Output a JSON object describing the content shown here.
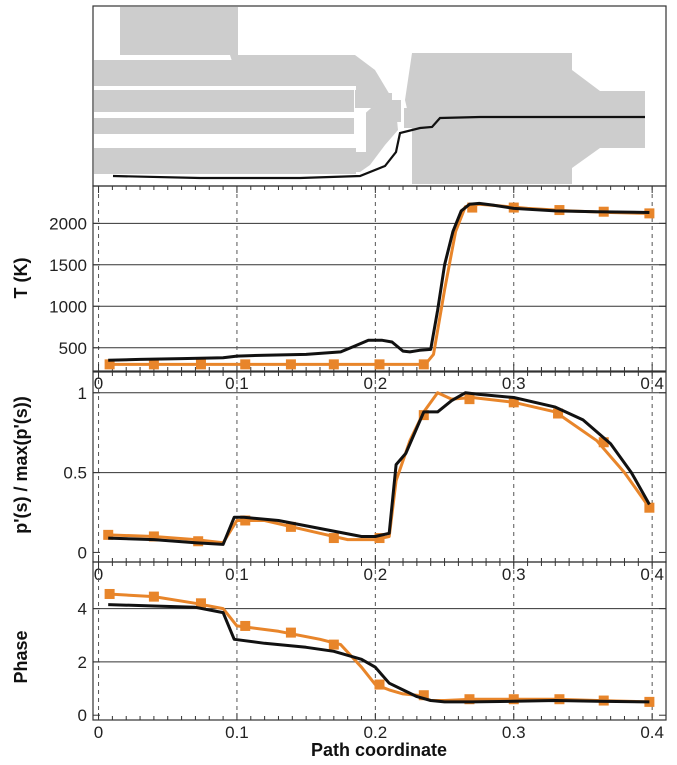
{
  "chart_data": [
    {
      "type": "diagram",
      "panel": "geometry",
      "description_series": "path line through combustor geometry"
    },
    {
      "type": "line",
      "panel": "temperature",
      "ylabel": "T (K)",
      "xlim": [
        -0.004,
        0.41
      ],
      "ylim": [
        220,
        2450
      ],
      "y_ticks": [
        500,
        1000,
        1500,
        2000
      ],
      "y_gridlines": [
        500,
        1000,
        1500,
        2000
      ],
      "x_ticks": [
        0,
        0.1,
        0.2,
        0.3,
        0.4
      ],
      "x_tick_labels": [
        "0",
        "0.1",
        "0.2",
        "0.3",
        "0.4"
      ],
      "series": [
        {
          "color": "#e8852a",
          "marker": "square",
          "x": [
            0.007,
            0.025,
            0.045,
            0.065,
            0.09,
            0.12,
            0.15,
            0.18,
            0.2,
            0.22,
            0.236,
            0.242,
            0.25,
            0.258,
            0.265,
            0.275,
            0.29,
            0.31,
            0.34,
            0.37,
            0.398
          ],
          "y": [
            300,
            300,
            300,
            300,
            300,
            300,
            300,
            300,
            300,
            300,
            300,
            420,
            1200,
            1900,
            2200,
            2230,
            2210,
            2180,
            2150,
            2130,
            2120
          ],
          "markers_x": [
            0.008,
            0.04,
            0.074,
            0.106,
            0.139,
            0.17,
            0.203,
            0.235,
            0.27,
            0.3,
            0.333,
            0.365,
            0.398
          ],
          "markers_y": [
            300,
            300,
            300,
            300,
            300,
            300,
            300,
            300,
            2190,
            2190,
            2160,
            2140,
            2120
          ]
        },
        {
          "color": "#111111",
          "x": [
            0.007,
            0.03,
            0.06,
            0.09,
            0.1,
            0.12,
            0.15,
            0.175,
            0.185,
            0.195,
            0.205,
            0.212,
            0.22,
            0.225,
            0.232,
            0.24,
            0.245,
            0.25,
            0.256,
            0.262,
            0.268,
            0.275,
            0.285,
            0.3,
            0.33,
            0.36,
            0.398
          ],
          "y": [
            350,
            360,
            370,
            380,
            400,
            410,
            420,
            450,
            520,
            590,
            590,
            570,
            460,
            450,
            470,
            480,
            950,
            1500,
            1900,
            2150,
            2230,
            2240,
            2220,
            2180,
            2150,
            2140,
            2130
          ]
        }
      ]
    },
    {
      "type": "line",
      "panel": "pressure",
      "ylabel": "p'(s) / max(p'(s))",
      "xlim": [
        -0.004,
        0.41
      ],
      "ylim": [
        -0.06,
        1.13
      ],
      "y_ticks": [
        0,
        0.5,
        1
      ],
      "y_tick_labels": [
        "0",
        "0.5",
        "1"
      ],
      "y_gridlines": [
        0.5,
        1
      ],
      "x_ticks": [
        0,
        0.1,
        0.2,
        0.3,
        0.4
      ],
      "x_tick_labels": [
        "0",
        "0.1",
        "0.2",
        "0.3",
        "0.4"
      ],
      "series": [
        {
          "color": "#e8852a",
          "marker": "square",
          "x": [
            0.007,
            0.04,
            0.07,
            0.09,
            0.1,
            0.12,
            0.14,
            0.16,
            0.18,
            0.2,
            0.21,
            0.215,
            0.225,
            0.235,
            0.245,
            0.255,
            0.27,
            0.3,
            0.33,
            0.36,
            0.38,
            0.398
          ],
          "y": [
            0.11,
            0.1,
            0.08,
            0.06,
            0.2,
            0.2,
            0.16,
            0.12,
            0.08,
            0.08,
            0.1,
            0.45,
            0.7,
            0.88,
            1.0,
            0.96,
            0.97,
            0.94,
            0.88,
            0.7,
            0.5,
            0.28
          ],
          "markers_x": [
            0.007,
            0.04,
            0.072,
            0.106,
            0.139,
            0.17,
            0.203,
            0.235,
            0.268,
            0.3,
            0.332,
            0.365,
            0.398
          ],
          "markers_y": [
            0.11,
            0.1,
            0.07,
            0.2,
            0.16,
            0.09,
            0.09,
            0.86,
            0.96,
            0.94,
            0.87,
            0.69,
            0.28
          ]
        },
        {
          "color": "#111111",
          "x": [
            0.007,
            0.04,
            0.07,
            0.09,
            0.098,
            0.105,
            0.13,
            0.16,
            0.19,
            0.2,
            0.21,
            0.215,
            0.222,
            0.235,
            0.245,
            0.255,
            0.265,
            0.275,
            0.3,
            0.33,
            0.35,
            0.37,
            0.385,
            0.398
          ],
          "y": [
            0.09,
            0.08,
            0.06,
            0.05,
            0.22,
            0.22,
            0.2,
            0.15,
            0.1,
            0.1,
            0.12,
            0.55,
            0.62,
            0.88,
            0.88,
            0.95,
            1.0,
            0.99,
            0.97,
            0.91,
            0.83,
            0.68,
            0.5,
            0.3
          ]
        }
      ]
    },
    {
      "type": "line",
      "panel": "phase",
      "ylabel": "Phase",
      "xlabel": "Path coordinate",
      "xlim": [
        -0.004,
        0.41
      ],
      "ylim": [
        -0.18,
        5.75
      ],
      "y_ticks": [
        0,
        2,
        4
      ],
      "y_tick_labels": [
        "0",
        "2",
        "4"
      ],
      "y_gridlines": [
        2,
        4
      ],
      "x_ticks": [
        0,
        0.1,
        0.2,
        0.3,
        0.4
      ],
      "x_tick_labels": [
        "0",
        "0.1",
        "0.2",
        "0.3",
        "0.4"
      ],
      "series": [
        {
          "color": "#e8852a",
          "marker": "square",
          "x": [
            0.007,
            0.04,
            0.07,
            0.09,
            0.1,
            0.13,
            0.16,
            0.175,
            0.19,
            0.2,
            0.21,
            0.22,
            0.23,
            0.24,
            0.25,
            0.27,
            0.3,
            0.33,
            0.36,
            0.398
          ],
          "y": [
            4.55,
            4.45,
            4.2,
            4.0,
            3.35,
            3.15,
            2.85,
            2.65,
            1.8,
            1.15,
            0.95,
            0.8,
            0.75,
            0.55,
            0.55,
            0.6,
            0.6,
            0.6,
            0.55,
            0.5
          ],
          "markers_x": [
            0.008,
            0.04,
            0.074,
            0.106,
            0.139,
            0.17,
            0.203,
            0.235,
            0.268,
            0.3,
            0.333,
            0.365,
            0.398
          ],
          "markers_y": [
            4.55,
            4.45,
            4.2,
            3.35,
            3.1,
            2.65,
            1.15,
            0.75,
            0.6,
            0.6,
            0.6,
            0.55,
            0.5
          ]
        },
        {
          "color": "#111111",
          "x": [
            0.007,
            0.04,
            0.07,
            0.09,
            0.098,
            0.12,
            0.15,
            0.17,
            0.19,
            0.2,
            0.21,
            0.22,
            0.23,
            0.24,
            0.25,
            0.27,
            0.3,
            0.33,
            0.36,
            0.398
          ],
          "y": [
            4.15,
            4.1,
            4.05,
            3.85,
            2.85,
            2.7,
            2.55,
            2.4,
            2.1,
            1.8,
            1.2,
            0.95,
            0.7,
            0.55,
            0.5,
            0.5,
            0.52,
            0.55,
            0.52,
            0.5
          ]
        }
      ]
    }
  ],
  "colors": {
    "orange": "#e8852a",
    "black": "#111111",
    "geometry_fill": "#c9c9c9"
  }
}
